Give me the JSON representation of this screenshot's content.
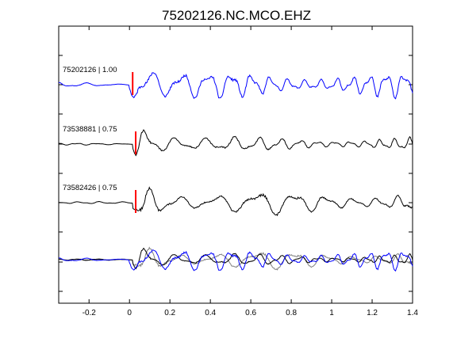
{
  "chart_data": {
    "type": "line",
    "title": "75202126.NC.MCO.EHZ",
    "xlabel": "",
    "ylabel": "",
    "xlim": [
      -0.35,
      1.4
    ],
    "x_ticks": [
      "-0.2",
      "0",
      "0.2",
      "0.4",
      "0.6",
      "0.8",
      "1",
      "1.2",
      "1.4"
    ],
    "x_tick_values": [
      -0.2,
      0,
      0.2,
      0.4,
      0.6,
      0.8,
      1.0,
      1.2,
      1.4
    ],
    "grid": false,
    "legend": "none",
    "traces": [
      {
        "label": "75202126 | 1.00",
        "color": "#0000ff",
        "pick_time": 0.0,
        "pick_color": "#ff0000"
      },
      {
        "label": "73538881 | 0.75",
        "color": "#000000",
        "pick_time": 0.015,
        "pick_color": "#ff0000"
      },
      {
        "label": "73582426 | 0.75",
        "color": "#000000",
        "pick_time": 0.015,
        "pick_color": "#ff0000"
      }
    ],
    "overlay": {
      "series_colors": [
        "#0000ff",
        "#000000",
        "#808080"
      ]
    }
  }
}
